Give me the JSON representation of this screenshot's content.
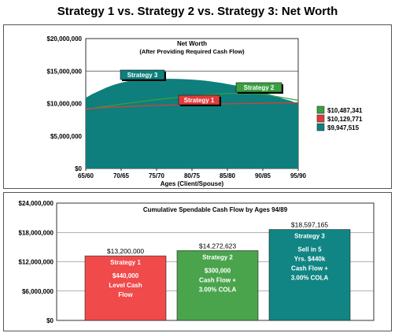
{
  "page": {
    "title": "Strategy 1 vs. Strategy 2 vs. Strategy 3: Net Worth"
  },
  "chart_data": [
    {
      "type": "area",
      "title": "Net Worth",
      "subtitle": "(After Providing Required Cash Flow)",
      "xlabel": "Ages (Client/Spouse)",
      "x_ticks": [
        "65/60",
        "70/65",
        "75/70",
        "80/75",
        "85/80",
        "90/85",
        "95/90"
      ],
      "ylim": [
        0,
        20000000
      ],
      "y_ticks": [
        "$0",
        "$5,000,000",
        "$10,000,000",
        "$15,000,000",
        "$20,000,000"
      ],
      "grid": "horizontal",
      "series": [
        {
          "name": "Strategy 3",
          "color": "#0e7f7c",
          "x": [
            0,
            1,
            2,
            3,
            4,
            5,
            6,
            7,
            8,
            9,
            10,
            11,
            12,
            13,
            14,
            15,
            16,
            17,
            18,
            19,
            20,
            21,
            22,
            23,
            24,
            25,
            26,
            27,
            28,
            29,
            30
          ],
          "values": [
            10.9,
            11.5,
            12.0,
            12.5,
            12.9,
            13.2,
            13.45,
            13.6,
            13.7,
            13.75,
            13.8,
            13.8,
            13.8,
            13.78,
            13.74,
            13.68,
            13.6,
            13.5,
            13.35,
            13.2,
            13.0,
            12.8,
            12.55,
            12.3,
            12.05,
            11.7,
            11.4,
            11.05,
            10.7,
            10.4,
            9.95
          ]
        },
        {
          "name": "Strategy 2",
          "color": "#3aa041",
          "x": [
            0,
            5,
            10,
            15,
            20,
            25,
            30
          ],
          "values": [
            9.1,
            9.9,
            10.6,
            11.2,
            11.55,
            11.45,
            10.49
          ]
        },
        {
          "name": "Strategy 1",
          "color": "#e03b3b",
          "x": [
            0,
            5,
            10,
            15,
            20,
            25,
            30
          ],
          "values": [
            9.2,
            9.5,
            9.7,
            9.85,
            9.95,
            10.05,
            10.13
          ]
        }
      ],
      "value_unit": "$ millions",
      "callouts": [
        {
          "label": "Strategy 3",
          "color": "#0e7f7c"
        },
        {
          "label": "Strategy 1",
          "color": "#e03b3b"
        },
        {
          "label": "Strategy 2",
          "color": "#3aa041"
        }
      ],
      "legend": {
        "position": "right",
        "items": [
          {
            "label": "$10,487,341",
            "color": "#3aa041"
          },
          {
            "label": "$10,129,771",
            "color": "#e03b3b"
          },
          {
            "label": "$9,947,515",
            "color": "#0e7f7c"
          }
        ]
      }
    },
    {
      "type": "bar",
      "title": "Cumulative Spendable Cash Flow by Ages 94/89",
      "categories": [
        "Strategy 1",
        "Strategy 2",
        "Strategy 3"
      ],
      "values": [
        13200000,
        14272623,
        18597165
      ],
      "value_labels": [
        "$13,200,000",
        "$14,272,623",
        "$18,597,165"
      ],
      "colors": [
        "#f04a4a",
        "#4aa44c",
        "#108583"
      ],
      "descriptions": [
        [
          "$440,000",
          "Level Cash",
          "Flow"
        ],
        [
          "$300,000",
          "Cash Flow +",
          "3.00% COLA"
        ],
        [
          "Sell in 5",
          "Yrs. $440k",
          "Cash Flow +",
          "3.00% COLA"
        ]
      ],
      "ylim": [
        0,
        24000000
      ],
      "y_ticks": [
        "$0",
        "$6,000,000",
        "$12,000,000",
        "$18,000,000",
        "$24,000,000"
      ],
      "grid": "horizontal"
    }
  ]
}
